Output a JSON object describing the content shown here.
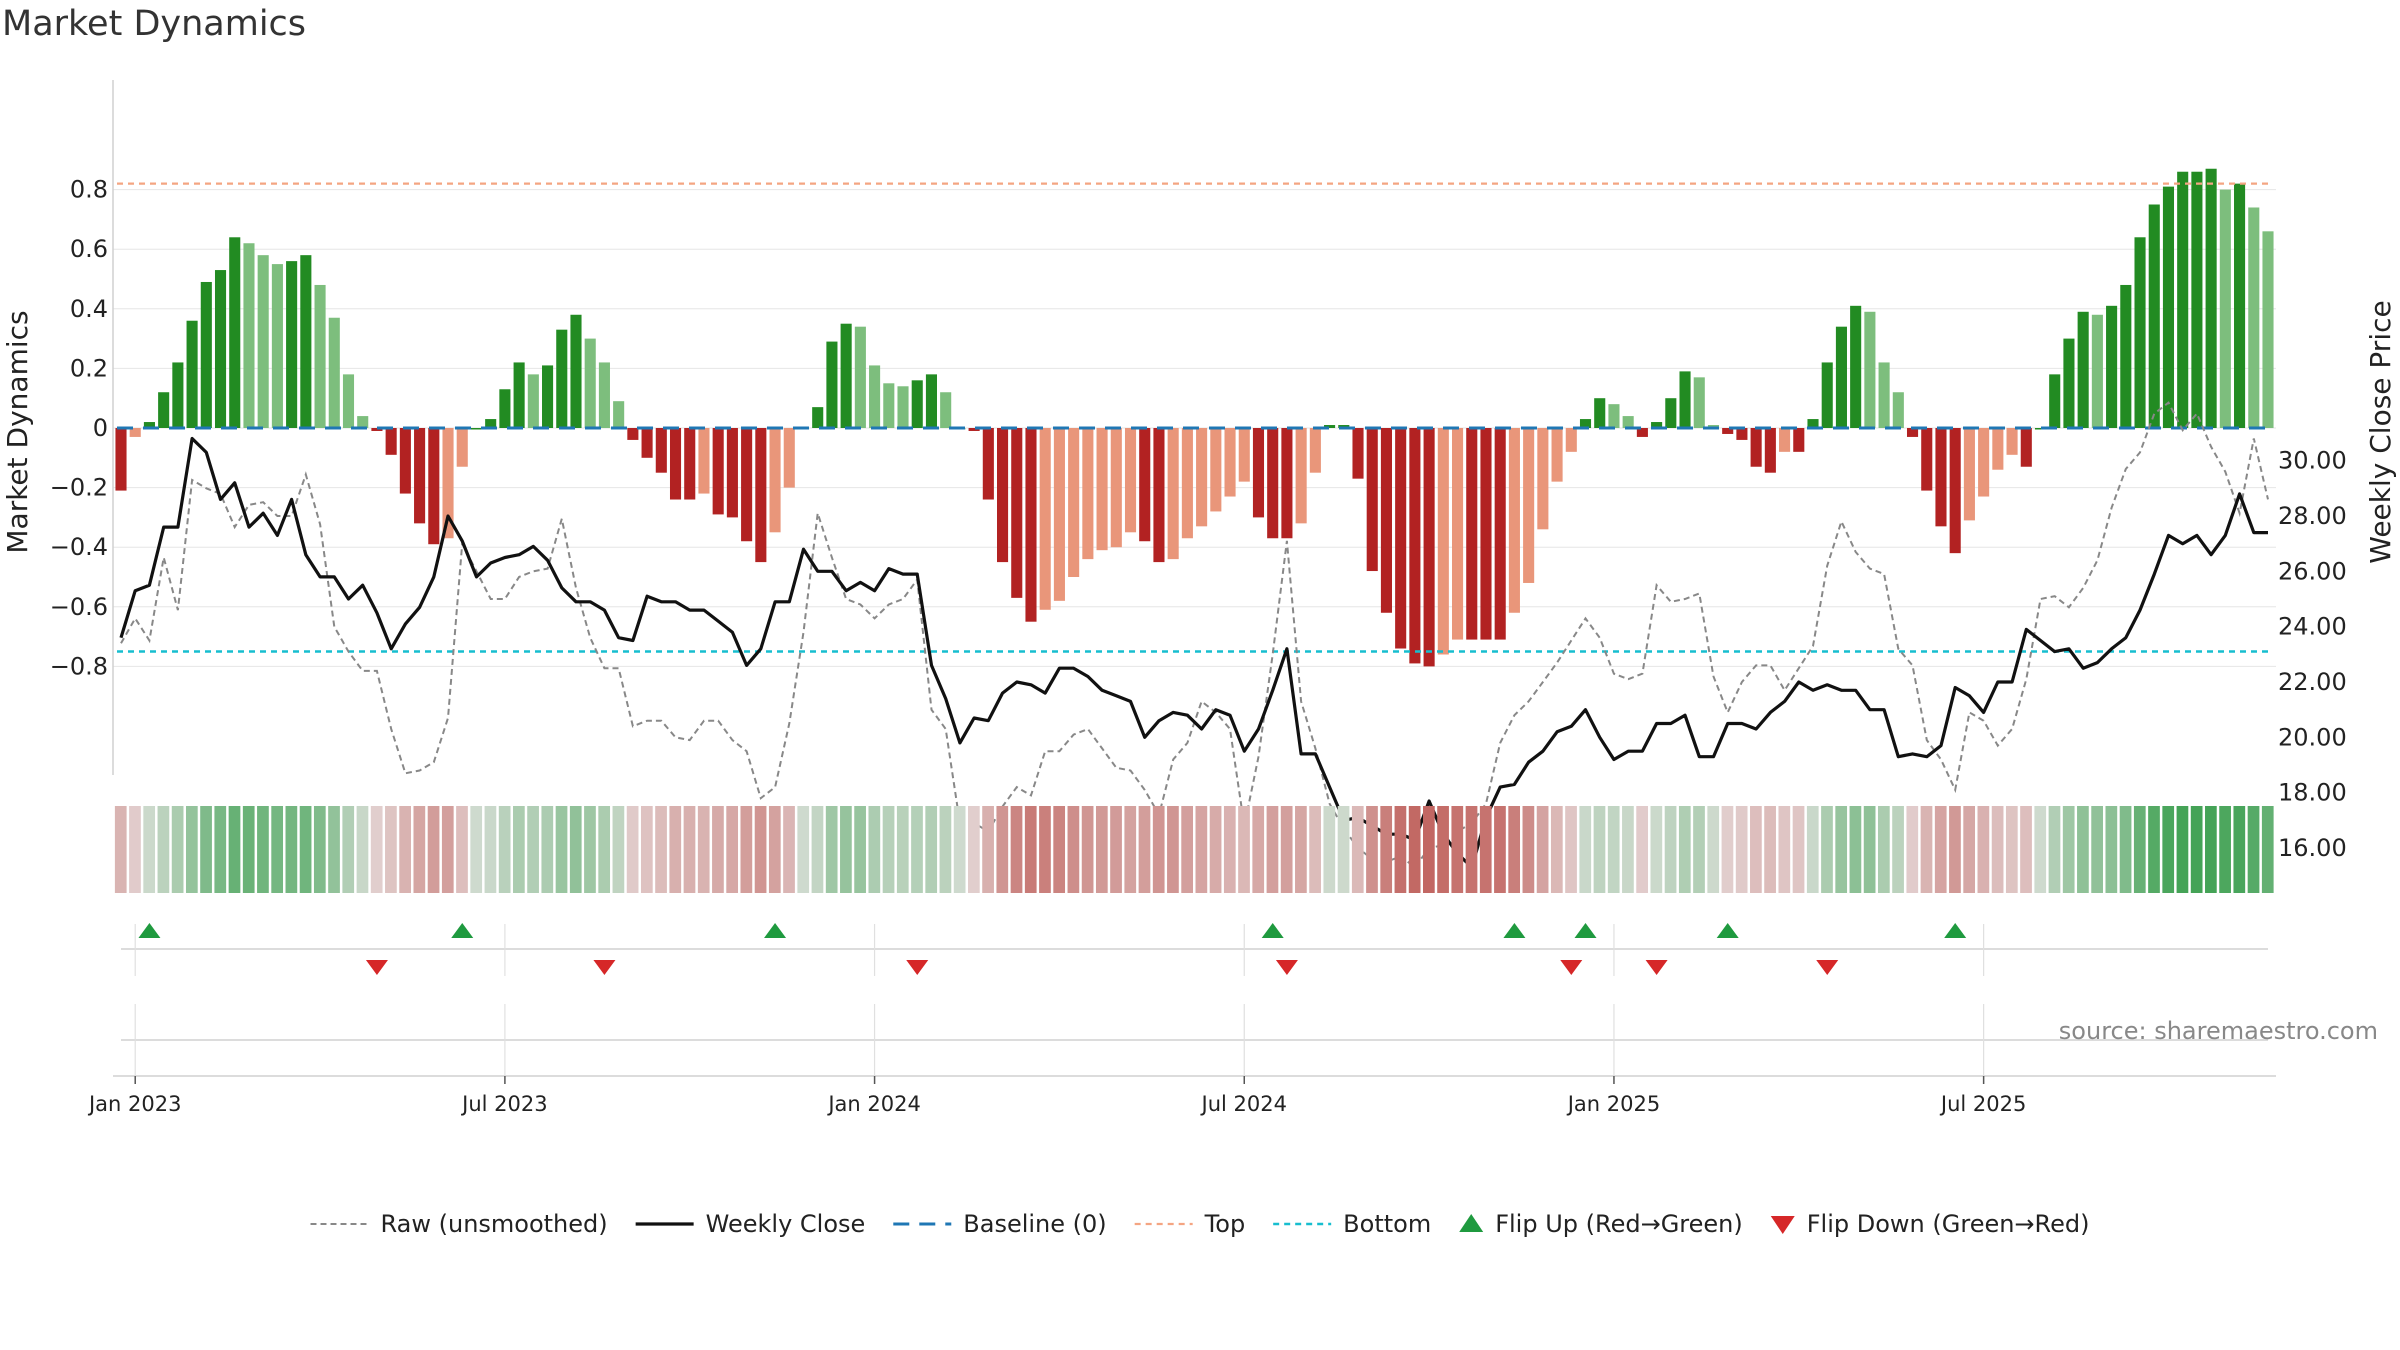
{
  "chart_data": {
    "type": "bar",
    "title": "Market Dynamics",
    "ylabel": "Market Dynamics",
    "y2label": "Weekly Close Price",
    "ylim": [
      -0.92,
      0.95
    ],
    "y2lim": [
      14.86,
      32.11
    ],
    "yticks": [
      "0.8",
      "0.6",
      "0.4",
      "0.2",
      "0",
      "−0.2",
      "−0.4",
      "−0.6",
      "−0.8"
    ],
    "yticks_values": [
      0.8,
      0.6,
      0.4,
      0.2,
      0,
      -0.2,
      -0.4,
      -0.6,
      -0.8
    ],
    "y2ticks": [
      "30.00",
      "28.00",
      "26.00",
      "24.00",
      "22.00",
      "20.00",
      "18.00",
      "16.00"
    ],
    "y2ticks_values": [
      30,
      28,
      26,
      24,
      22,
      20,
      18,
      16
    ],
    "xticks": [
      "Jan 2023",
      "Jul 2023",
      "Jan 2024",
      "Jul 2024",
      "Jan 2025",
      "Jul 2025"
    ],
    "xticks_week_index": [
      1,
      27,
      53,
      79,
      105,
      131
    ],
    "top_level": 0.82,
    "bottom_level": -0.75,
    "baseline": 0,
    "momentum": [
      -0.21,
      -0.03,
      0.02,
      0.12,
      0.22,
      0.36,
      0.49,
      0.53,
      0.64,
      0.62,
      0.58,
      0.55,
      0.56,
      0.58,
      0.48,
      0.37,
      0.18,
      0.04,
      -0.01,
      -0.09,
      -0.22,
      -0.32,
      -0.39,
      -0.37,
      -0.13,
      0.0,
      0.03,
      0.13,
      0.22,
      0.18,
      0.21,
      0.33,
      0.38,
      0.3,
      0.22,
      0.09,
      -0.04,
      -0.1,
      -0.15,
      -0.24,
      -0.24,
      -0.22,
      -0.29,
      -0.3,
      -0.38,
      -0.45,
      -0.35,
      -0.2,
      0.0,
      0.07,
      0.29,
      0.35,
      0.34,
      0.21,
      0.15,
      0.14,
      0.16,
      0.18,
      0.12,
      0.0,
      -0.01,
      -0.24,
      -0.45,
      -0.57,
      -0.65,
      -0.61,
      -0.58,
      -0.5,
      -0.44,
      -0.41,
      -0.4,
      -0.35,
      -0.38,
      -0.45,
      -0.44,
      -0.37,
      -0.33,
      -0.28,
      -0.23,
      -0.18,
      -0.3,
      -0.37,
      -0.37,
      -0.32,
      -0.15,
      0.01,
      0.01,
      -0.17,
      -0.48,
      -0.62,
      -0.74,
      -0.79,
      -0.8,
      -0.76,
      -0.71,
      -0.71,
      -0.71,
      -0.71,
      -0.62,
      -0.52,
      -0.34,
      -0.18,
      -0.08,
      0.03,
      0.1,
      0.08,
      0.04,
      -0.03,
      0.02,
      0.1,
      0.19,
      0.17,
      0.01,
      -0.02,
      -0.04,
      -0.13,
      -0.15,
      -0.08,
      -0.08,
      0.03,
      0.22,
      0.34,
      0.41,
      0.39,
      0.22,
      0.12,
      -0.03,
      -0.21,
      -0.33,
      -0.42,
      -0.31,
      -0.23,
      -0.14,
      -0.09,
      -0.13,
      0.0,
      0.18,
      0.3,
      0.39,
      0.38,
      0.41,
      0.48,
      0.64,
      0.75,
      0.81,
      0.86,
      0.86,
      0.87,
      0.8,
      0.82,
      0.74,
      0.66
    ],
    "weekly_close": [
      23.6,
      25.3,
      25.5,
      27.6,
      27.6,
      30.8,
      30.3,
      28.6,
      29.2,
      27.6,
      28.1,
      27.3,
      28.6,
      26.6,
      25.8,
      25.8,
      25.0,
      25.5,
      24.5,
      23.2,
      24.1,
      24.7,
      25.8,
      28.0,
      27.1,
      25.8,
      26.3,
      26.5,
      26.6,
      26.9,
      26.4,
      25.4,
      24.9,
      24.9,
      24.6,
      23.6,
      23.5,
      25.1,
      24.9,
      24.9,
      24.6,
      24.6,
      24.2,
      23.8,
      22.6,
      23.2,
      24.9,
      24.9,
      26.8,
      26.0,
      26.0,
      25.3,
      25.6,
      25.3,
      26.1,
      25.9,
      25.9,
      22.6,
      21.4,
      19.8,
      20.7,
      20.6,
      21.6,
      22.0,
      21.9,
      21.6,
      22.5,
      22.5,
      22.2,
      21.7,
      21.5,
      21.3,
      20.0,
      20.6,
      20.9,
      20.8,
      20.3,
      21.0,
      20.8,
      19.5,
      20.3,
      21.7,
      23.2,
      19.4,
      19.4,
      18.2,
      17.0,
      17.1,
      16.8,
      16.5,
      16.5,
      16.3,
      17.7,
      16.5,
      15.8,
      15.3,
      17.1,
      18.2,
      18.3,
      19.1,
      19.5,
      20.2,
      20.4,
      21.0,
      20.0,
      19.2,
      19.5,
      19.5,
      20.5,
      20.5,
      20.8,
      19.3,
      19.3,
      20.5,
      20.5,
      20.3,
      20.9,
      21.3,
      22.0,
      21.7,
      21.9,
      21.7,
      21.7,
      21.0,
      21.0,
      19.3,
      19.4,
      19.3,
      19.7,
      21.8,
      21.5,
      20.9,
      22.0,
      22.0,
      23.9,
      23.5,
      23.1,
      23.2,
      22.5,
      22.7,
      23.2,
      23.6,
      24.6,
      25.9,
      27.3,
      27.0,
      27.3,
      26.6,
      27.3,
      28.8,
      27.4,
      27.4
    ],
    "raw": [
      23.4,
      24.3,
      23.5,
      26.5,
      24.6,
      29.3,
      29.0,
      28.8,
      27.6,
      28.4,
      28.5,
      28.0,
      28.0,
      29.5,
      27.7,
      24.0,
      23.1,
      22.4,
      22.4,
      20.3,
      18.7,
      18.8,
      19.1,
      20.7,
      27.0,
      26.0,
      25.0,
      25.0,
      25.8,
      26.0,
      26.1,
      27.9,
      25.4,
      23.6,
      22.5,
      22.5,
      20.4,
      20.6,
      20.6,
      20.0,
      19.9,
      20.6,
      20.6,
      19.9,
      19.5,
      17.8,
      18.2,
      20.5,
      23.8,
      28.1,
      26.5,
      25.0,
      24.8,
      24.3,
      24.8,
      25.0,
      25.7,
      21.0,
      20.3,
      16.9,
      16.9,
      16.6,
      17.5,
      18.2,
      17.9,
      19.5,
      19.5,
      20.1,
      20.3,
      19.6,
      18.9,
      18.8,
      18.1,
      17.2,
      19.2,
      19.8,
      21.3,
      20.9,
      20.3,
      16.8,
      19.3,
      23.0,
      27.1,
      21.3,
      19.6,
      17.6,
      16.7,
      16.0,
      15.6,
      15.5,
      15.7,
      15.3,
      16.0,
      16.1,
      16.6,
      16.9,
      17.6,
      19.8,
      20.8,
      21.3,
      22.0,
      22.7,
      23.5,
      24.3,
      23.6,
      22.3,
      22.1,
      22.3,
      25.5,
      24.9,
      25.0,
      25.2,
      22.2,
      20.9,
      22.0,
      22.6,
      22.6,
      21.7,
      22.5,
      23.3,
      26.2,
      27.8,
      26.7,
      26.1,
      25.9,
      23.2,
      22.6,
      19.9,
      19.2,
      18.1,
      20.9,
      20.6,
      19.7,
      20.3,
      22.1,
      25.0,
      25.1,
      24.7,
      25.4,
      26.4,
      28.3,
      29.7,
      30.3,
      31.7,
      32.1,
      31.1,
      31.7,
      30.5,
      29.6,
      28.1,
      30.8,
      28.6
    ],
    "flip_up_weeks": [
      2,
      24,
      46,
      81,
      98,
      103,
      113,
      129
    ],
    "flip_down_weeks": [
      18,
      34,
      56,
      82,
      102,
      108,
      120
    ],
    "legend": [
      {
        "label": "Raw (unsmoothed)"
      },
      {
        "label": "Weekly Close"
      },
      {
        "label": "Baseline (0)"
      },
      {
        "label": "Top"
      },
      {
        "label": "Bottom"
      },
      {
        "label": "Flip Up (Red→Green)"
      },
      {
        "label": "Flip Down (Green→Red)"
      }
    ],
    "source": "source: sharemaestro.com",
    "grid": true,
    "legend_position": "bottom-center",
    "colors": {
      "green_strong": "#228b22",
      "green_light": "#7dbe7d",
      "red_strong": "#b22222",
      "red_light": "#e9967a",
      "close_line": "#111111",
      "raw_line": "#888888",
      "baseline": "#1f77b4",
      "top": "#f4a582",
      "bottom": "#17becf",
      "flip_up": "#1f9a3f",
      "flip_down": "#d62728"
    }
  }
}
